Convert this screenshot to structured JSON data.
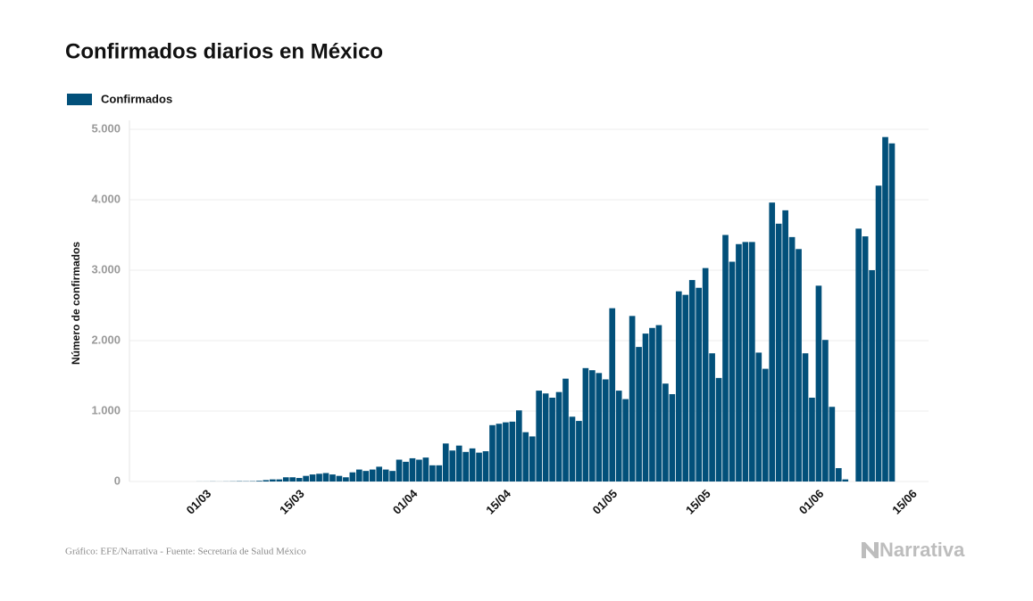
{
  "chart_data": {
    "type": "bar",
    "title": "Confirmados diarios en México",
    "ylabel": "Número de confirmados",
    "source": "Gráfico: EFE/Narrativa - Fuente: Secretaría de Salud México",
    "logo": "Narrativa",
    "grid": true,
    "legend": "top-left",
    "ylim": [
      0,
      5000
    ],
    "yticks": [
      0,
      {
        "value": 1000,
        "label": "1.000"
      },
      {
        "value": 2000,
        "label": "2.000"
      },
      {
        "value": 3000,
        "label": "3.000"
      },
      {
        "value": 4000,
        "label": "4.000"
      },
      {
        "value": 5000,
        "label": "5.000"
      }
    ],
    "categories": [
      null,
      null,
      null,
      null,
      null,
      null,
      null,
      null,
      null,
      null,
      null,
      "01/03",
      null,
      null,
      null,
      null,
      null,
      null,
      null,
      null,
      null,
      null,
      null,
      null,
      null,
      "15/03",
      null,
      null,
      null,
      null,
      null,
      null,
      null,
      null,
      null,
      null,
      null,
      null,
      null,
      null,
      null,
      null,
      "01/04",
      null,
      null,
      null,
      null,
      null,
      null,
      null,
      null,
      null,
      null,
      null,
      null,
      null,
      "15/04",
      null,
      null,
      null,
      null,
      null,
      null,
      null,
      null,
      null,
      null,
      null,
      null,
      null,
      null,
      null,
      "01/05",
      null,
      null,
      null,
      null,
      null,
      null,
      null,
      null,
      null,
      null,
      null,
      null,
      null,
      "15/05",
      null,
      null,
      null,
      null,
      null,
      null,
      null,
      null,
      null,
      null,
      null,
      null,
      null,
      null,
      null,
      null,
      "01/06",
      null,
      null,
      null,
      null,
      null,
      null,
      null,
      null,
      null,
      null,
      null,
      null,
      null,
      "15/06",
      null,
      null
    ],
    "series": [
      {
        "name": "Confirmados",
        "color": "#02507a",
        "values": [
          null,
          0,
          0,
          0,
          0,
          0,
          0,
          0,
          0,
          0,
          1,
          1,
          2,
          1,
          2,
          3,
          5,
          4,
          5,
          10,
          20,
          30,
          30,
          60,
          60,
          50,
          80,
          100,
          110,
          120,
          100,
          80,
          60,
          130,
          170,
          150,
          170,
          210,
          170,
          150,
          310,
          280,
          330,
          310,
          340,
          230,
          230,
          540,
          440,
          510,
          420,
          470,
          410,
          430,
          800,
          820,
          840,
          850,
          1010,
          700,
          640,
          1290,
          1250,
          1190,
          1270,
          1460,
          920,
          860,
          1610,
          1580,
          1540,
          1450,
          2460,
          1290,
          1170,
          2350,
          1910,
          2100,
          2180,
          2220,
          1390,
          1240,
          2700,
          2650,
          2860,
          2750,
          3030,
          1820,
          1470,
          3500,
          3120,
          3370,
          3400,
          3400,
          1830,
          1600,
          3960,
          3660,
          3850,
          3470,
          3300,
          1820,
          1190,
          2780,
          2010,
          1060,
          190,
          30,
          null,
          3590,
          3480,
          3000,
          4200,
          4890,
          4800,
          null,
          null,
          null,
          null,
          null
        ]
      }
    ]
  }
}
